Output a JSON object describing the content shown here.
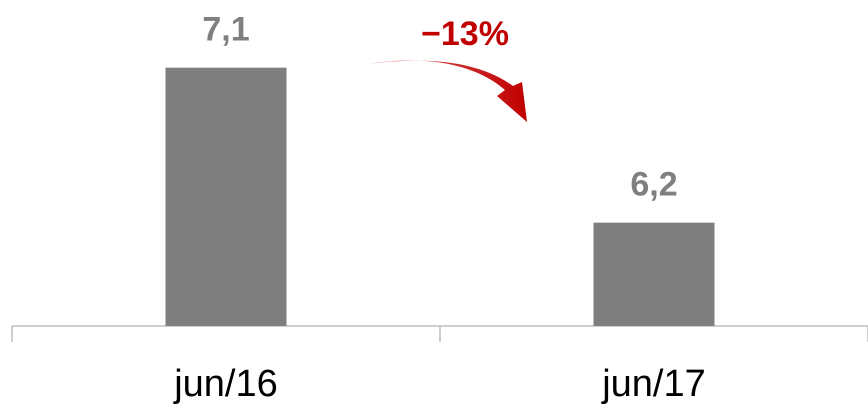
{
  "chart_data": {
    "type": "bar",
    "categories": [
      "jun/16",
      "jun/17"
    ],
    "values": [
      7.1,
      6.2
    ],
    "value_labels": [
      "7,1",
      "6,2"
    ],
    "color": "#7f7f7f",
    "ylim": [
      5.6,
      7.4
    ],
    "annotation": "−13%"
  }
}
